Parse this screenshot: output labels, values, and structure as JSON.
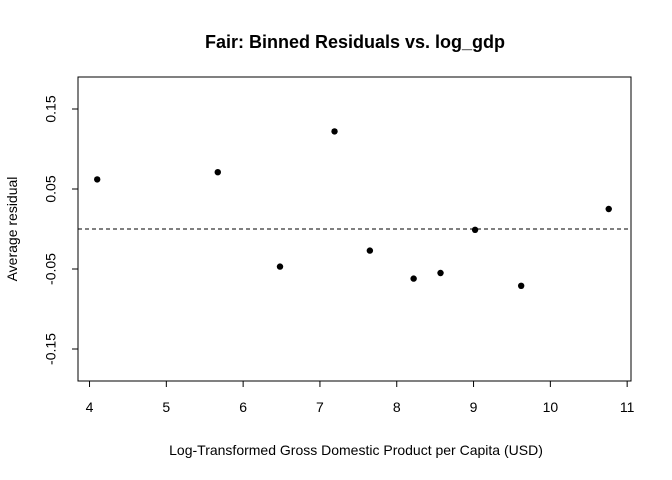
{
  "chart_data": {
    "type": "scatter",
    "title": "Fair: Binned Residuals vs. log_gdp",
    "xlabel": "Log-Transformed Gross Domestic Product per Capita (USD)",
    "ylabel": "Average residual",
    "xlim": [
      3.85,
      11.05
    ],
    "ylim": [
      -0.19,
      0.19
    ],
    "x_ticks": [
      4,
      5,
      6,
      7,
      8,
      9,
      10,
      11
    ],
    "y_ticks": [
      -0.15,
      -0.05,
      0.05,
      0.15
    ],
    "x_tick_labels": [
      "4",
      "5",
      "6",
      "7",
      "8",
      "9",
      "10",
      "11"
    ],
    "y_tick_labels": [
      "-0.15",
      "-0.05",
      "0.05",
      "0.15"
    ],
    "reference_line": 0,
    "grid": false,
    "points": [
      {
        "x": 4.1,
        "y": 0.062
      },
      {
        "x": 5.67,
        "y": 0.071
      },
      {
        "x": 6.48,
        "y": -0.047
      },
      {
        "x": 7.19,
        "y": 0.122
      },
      {
        "x": 7.65,
        "y": -0.027
      },
      {
        "x": 8.22,
        "y": -0.062
      },
      {
        "x": 8.57,
        "y": -0.055
      },
      {
        "x": 9.02,
        "y": -0.001
      },
      {
        "x": 9.62,
        "y": -0.071
      },
      {
        "x": 10.76,
        "y": 0.025
      }
    ],
    "colors": {
      "points": "#000000",
      "axes": "#000000",
      "background": "#ffffff"
    }
  }
}
